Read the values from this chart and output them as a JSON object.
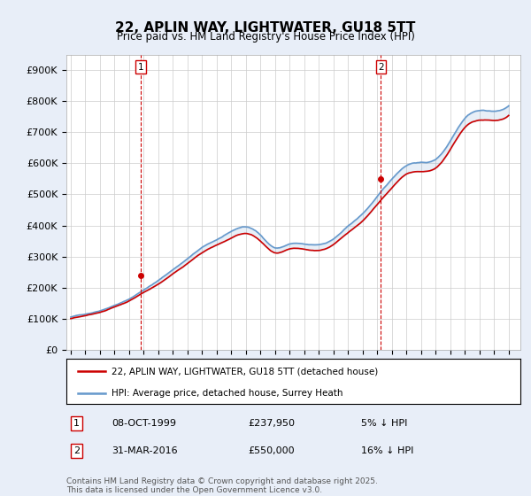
{
  "title": "22, APLIN WAY, LIGHTWATER, GU18 5TT",
  "subtitle": "Price paid vs. HM Land Registry's House Price Index (HPI)",
  "ylabel_ticks": [
    "£0",
    "£100K",
    "£200K",
    "£300K",
    "£400K",
    "£500K",
    "£600K",
    "£700K",
    "£800K",
    "£900K"
  ],
  "ytick_values": [
    0,
    100000,
    200000,
    300000,
    400000,
    500000,
    600000,
    700000,
    800000,
    900000
  ],
  "ylim": [
    0,
    950000
  ],
  "xlim_start": 1994.7,
  "xlim_end": 2025.8,
  "marker1_x": 1999.77,
  "marker1_y": 237950,
  "marker2_x": 2016.25,
  "marker2_y": 550000,
  "marker1_label": "1",
  "marker2_label": "2",
  "marker1_date": "08-OCT-1999",
  "marker1_price": "£237,950",
  "marker1_hpi": "5% ↓ HPI",
  "marker2_date": "31-MAR-2016",
  "marker2_price": "£550,000",
  "marker2_hpi": "16% ↓ HPI",
  "legend_line1": "22, APLIN WAY, LIGHTWATER, GU18 5TT (detached house)",
  "legend_line2": "HPI: Average price, detached house, Surrey Heath",
  "line1_color": "#cc0000",
  "line2_color": "#6699cc",
  "footer": "Contains HM Land Registry data © Crown copyright and database right 2025.\nThis data is licensed under the Open Government Licence v3.0.",
  "background_color": "#e8eef8",
  "plot_background": "#ffffff",
  "grid_color": "#cccccc",
  "hpi_anchors_x": [
    1995,
    1996,
    1997,
    1998,
    1999,
    2000,
    2001,
    2002,
    2003,
    2004,
    2005,
    2006,
    2007,
    2008,
    2009,
    2010,
    2011,
    2012,
    2013,
    2014,
    2015,
    2016,
    2017,
    2018,
    2019,
    2020,
    2021,
    2022,
    2023,
    2024,
    2025
  ],
  "hpi_anchors_y": [
    105000,
    115000,
    127000,
    145000,
    165000,
    195000,
    225000,
    260000,
    295000,
    330000,
    355000,
    380000,
    395000,
    368000,
    328000,
    340000,
    338000,
    336000,
    355000,
    395000,
    435000,
    490000,
    545000,
    590000,
    600000,
    610000,
    670000,
    745000,
    770000,
    768000,
    785000
  ],
  "price_anchors_x": [
    1995,
    1996,
    1997,
    1998,
    1999,
    2000,
    2001,
    2002,
    2003,
    2004,
    2005,
    2006,
    2007,
    2008,
    2009,
    2010,
    2011,
    2012,
    2013,
    2014,
    2015,
    2016,
    2017,
    2018,
    2019,
    2020,
    2021,
    2022,
    2023,
    2024,
    2025
  ],
  "price_anchors_y": [
    100000,
    109000,
    120000,
    138000,
    158000,
    186000,
    213000,
    247000,
    281000,
    315000,
    340000,
    362000,
    377000,
    352000,
    314000,
    325000,
    323000,
    320000,
    339000,
    378000,
    416000,
    468000,
    521000,
    565000,
    574000,
    585000,
    644000,
    714000,
    738000,
    737000,
    754000
  ]
}
